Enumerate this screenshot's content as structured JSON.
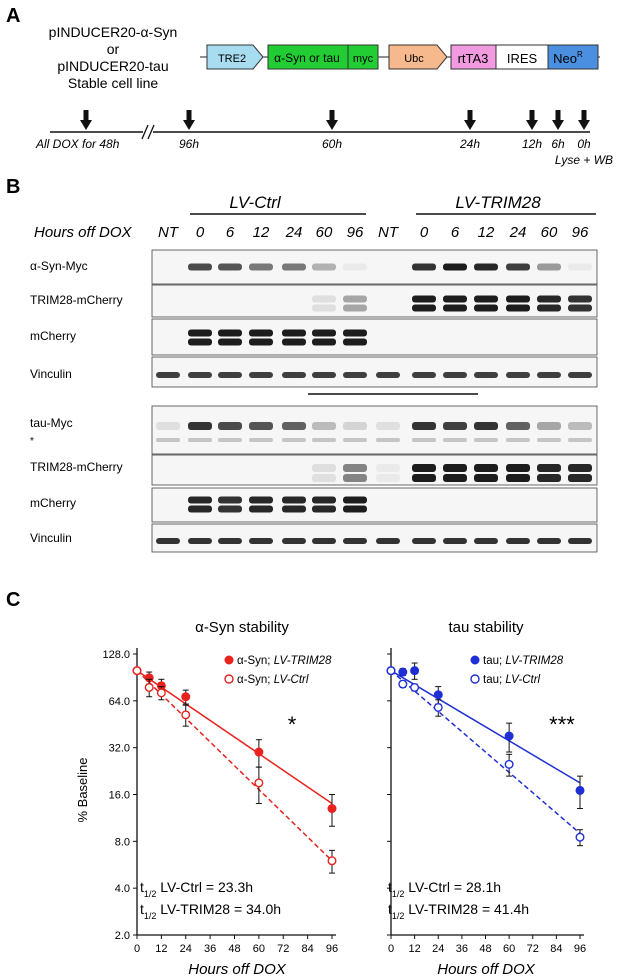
{
  "panelA": {
    "letter": "A",
    "construct_lines": [
      "pINDUCER20-α-Syn",
      "or",
      "pINDUCER20-tau",
      "Stable cell line"
    ],
    "vector": {
      "tre2": "TRE2",
      "insert": "α-Syn or tau",
      "myc": "myc",
      "ubc": "Ubc",
      "rtta3": "rtTA3",
      "ires": "IRES",
      "neo": "Neo",
      "neo_sup": "R",
      "colors": {
        "tre2": "#a8dcf0",
        "insert": "#22cc33",
        "ubc": "#f6b98e",
        "rtta3": "#f19ae0",
        "neo": "#4a8fe0"
      }
    },
    "timeline": {
      "start_label": "All DOX for 48h",
      "points": [
        "96h",
        "60h",
        "24h",
        "12h",
        "6h",
        "0h"
      ],
      "end_label": "Lyse + WB"
    }
  },
  "panelB": {
    "letter": "B",
    "group_ctrl": "LV-Ctrl",
    "group_trim": "LV-TRIM28",
    "row_label": "Hours off DOX",
    "lanes": [
      "NT",
      "0",
      "6",
      "12",
      "24",
      "60",
      "96",
      "NT",
      "0",
      "6",
      "12",
      "24",
      "60",
      "96"
    ],
    "blots_syn": [
      "α-Syn-Myc",
      "TRIM28-mCherry",
      "mCherry",
      "Vinculin"
    ],
    "blots_tau": [
      "tau-Myc",
      "TRIM28-mCherry",
      "mCherry",
      "Vinculin"
    ],
    "nonspecific_mark": "*",
    "band_levels": {
      "syn_myc": [
        0,
        0.75,
        0.7,
        0.55,
        0.55,
        0.3,
        0.05,
        0,
        0.85,
        0.95,
        0.9,
        0.8,
        0.4,
        0.05
      ],
      "syn_trim": [
        0,
        0,
        0,
        0,
        0,
        0.1,
        0.35,
        0,
        0.95,
        0.95,
        0.95,
        0.95,
        0.9,
        0.85
      ],
      "syn_mcherry": [
        0,
        0.95,
        0.95,
        0.95,
        0.95,
        0.95,
        0.95,
        0,
        0,
        0,
        0,
        0,
        0,
        0
      ],
      "syn_vinculin": [
        0.8,
        0.8,
        0.8,
        0.8,
        0.8,
        0.8,
        0.8,
        0.8,
        0.8,
        0.8,
        0.8,
        0.8,
        0.8,
        0.8
      ],
      "tau_myc": [
        0.1,
        0.85,
        0.75,
        0.7,
        0.65,
        0.25,
        0.15,
        0.1,
        0.85,
        0.8,
        0.85,
        0.65,
        0.35,
        0.25
      ],
      "tau_trim": [
        0,
        0,
        0,
        0,
        0,
        0.1,
        0.5,
        0.05,
        0.95,
        0.95,
        0.95,
        0.95,
        0.9,
        0.9
      ],
      "tau_mcherry": [
        0,
        0.9,
        0.85,
        0.9,
        0.9,
        0.9,
        0.95,
        0,
        0,
        0,
        0,
        0,
        0,
        0
      ],
      "tau_vinculin": [
        0.85,
        0.85,
        0.85,
        0.85,
        0.85,
        0.85,
        0.85,
        0.85,
        0.85,
        0.85,
        0.85,
        0.85,
        0.85,
        0.85
      ]
    }
  },
  "panelC": {
    "letter": "C",
    "ylabel": "% Baseline",
    "xlabel": "Hours off DOX",
    "y_ticks": [
      "128.0",
      "64.0",
      "32.0",
      "16.0",
      "8.0",
      "4.0",
      "2.0"
    ],
    "x_ticks": [
      "0",
      "12",
      "24",
      "36",
      "48",
      "60",
      "72",
      "84",
      "96"
    ],
    "left": {
      "title": "α-Syn stability",
      "legend_trim_a": "α-Syn; ",
      "legend_trim_b": "LV-TRIM28",
      "legend_ctrl_a": "α-Syn; ",
      "legend_ctrl_b": "LV-Ctrl",
      "significance": "*",
      "color": "#e8221c",
      "half1_a": "t",
      "half1_sub": "1/2",
      "half1_b": " LV-Ctrl = 23.3h",
      "half2_a": "t",
      "half2_sub": "1/2",
      "half2_b": " LV-TRIM28 = 34.0h"
    },
    "right": {
      "title": "tau stability",
      "legend_trim_a": "tau; ",
      "legend_trim_b": "LV-TRIM28",
      "legend_ctrl_a": "tau; ",
      "legend_ctrl_b": "LV-Ctrl",
      "significance": "***",
      "color": "#1f2fd6",
      "half1_a": "t",
      "half1_sub": "1/2",
      "half1_b": " LV-Ctrl = 28.1h",
      "half2_a": "t",
      "half2_sub": "1/2",
      "half2_b": " LV-TRIM28 = 41.4h"
    }
  },
  "chart_data": [
    {
      "type": "scatter",
      "title": "α-Syn stability",
      "xlabel": "Hours off DOX",
      "ylabel": "% Baseline",
      "y_scale": "log2",
      "xlim": [
        0,
        96
      ],
      "ylim": [
        2,
        128
      ],
      "legend_position": "top-right",
      "series": [
        {
          "name": "α-Syn; LV-TRIM28",
          "marker": "filled",
          "line": "solid",
          "x": [
            0,
            6,
            12,
            24,
            60,
            96
          ],
          "y": [
            100,
            90,
            80,
            68,
            30,
            13
          ],
          "err": [
            4,
            8,
            8,
            7,
            6,
            3
          ],
          "fit": [
            [
              0,
              100
            ],
            [
              96,
              14
            ]
          ]
        },
        {
          "name": "α-Syn; LV-Ctrl",
          "marker": "open",
          "line": "dashed",
          "x": [
            0,
            6,
            12,
            24,
            60,
            96
          ],
          "y": [
            100,
            78,
            72,
            52,
            19,
            6
          ],
          "err": [
            4,
            10,
            7,
            8,
            5,
            1
          ],
          "fit": [
            [
              0,
              100
            ],
            [
              96,
              6
            ]
          ]
        }
      ],
      "annotations": [
        "*",
        "t1/2 LV-Ctrl = 23.3h",
        "t1/2 LV-TRIM28 = 34.0h"
      ]
    },
    {
      "type": "scatter",
      "title": "tau stability",
      "xlabel": "Hours off DOX",
      "ylabel": "% Baseline",
      "y_scale": "log2",
      "xlim": [
        0,
        96
      ],
      "ylim": [
        2,
        128
      ],
      "legend_position": "top-right",
      "series": [
        {
          "name": "tau; LV-TRIM28",
          "marker": "filled",
          "line": "solid",
          "x": [
            0,
            6,
            12,
            24,
            60,
            96
          ],
          "y": [
            100,
            98,
            100,
            70,
            38,
            17
          ],
          "err": [
            3,
            5,
            12,
            9,
            8,
            4
          ],
          "fit": [
            [
              0,
              100
            ],
            [
              96,
              19
            ]
          ]
        },
        {
          "name": "tau; LV-Ctrl",
          "marker": "open",
          "line": "dashed",
          "x": [
            0,
            6,
            12,
            24,
            60,
            96
          ],
          "y": [
            100,
            82,
            78,
            58,
            25,
            8.5
          ],
          "err": [
            3,
            4,
            4,
            7,
            4,
            1
          ],
          "fit": [
            [
              0,
              100
            ],
            [
              96,
              9
            ]
          ]
        }
      ],
      "annotations": [
        "***",
        "t1/2 LV-Ctrl = 28.1h",
        "t1/2 LV-TRIM28 = 41.4h"
      ]
    }
  ]
}
